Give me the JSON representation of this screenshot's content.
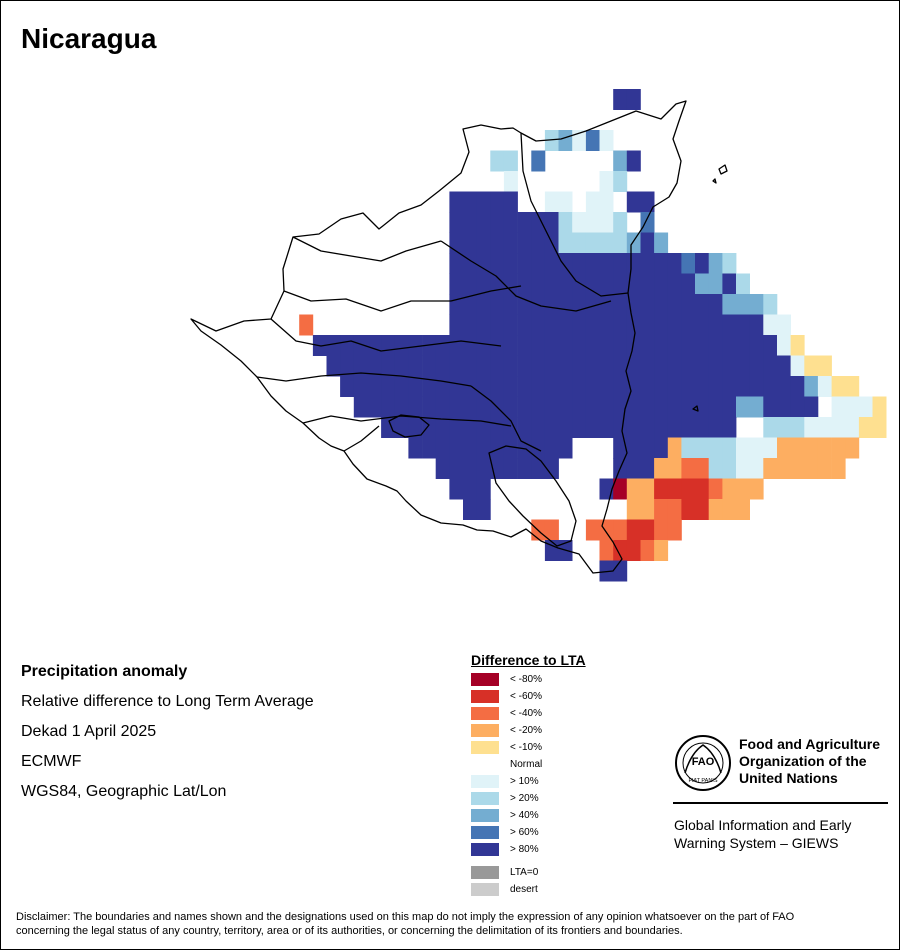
{
  "title": "Nicaragua",
  "info": {
    "heading": "Precipitation anomaly",
    "subtitle": "Relative difference to Long Term Average",
    "period": "Dekad 1 April 2025",
    "source": "ECMWF",
    "projection": "WGS84, Geographic Lat/Lon"
  },
  "legend": {
    "title": "Difference to LTA",
    "items": [
      {
        "label": "< -80%",
        "color": "#a50026"
      },
      {
        "label": "< -60%",
        "color": "#d73027"
      },
      {
        "label": "< -40%",
        "color": "#f46d43"
      },
      {
        "label": "< -20%",
        "color": "#fdae61"
      },
      {
        "label": "< -10%",
        "color": "#fee090"
      },
      {
        "label": "Normal",
        "color": "#ffffff"
      },
      {
        "label": "> 10%",
        "color": "#e0f3f8"
      },
      {
        "label": "> 20%",
        "color": "#abd9e9"
      },
      {
        "label": "> 40%",
        "color": "#74add1"
      },
      {
        "label": "> 60%",
        "color": "#4575b4"
      },
      {
        "label": "> 80%",
        "color": "#313695"
      }
    ],
    "extra": [
      {
        "label": "LTA=0",
        "color": "#999999"
      },
      {
        "label": "desert",
        "color": "#cccccc"
      }
    ]
  },
  "org": {
    "logo_text": "FAO",
    "logo_motto": "FIAT PANIS",
    "name_line1": "Food and Agriculture",
    "name_line2": "Organization of the",
    "name_line3": "United Nations",
    "system_line1": "Global Information and Early",
    "system_line2": "Warning System – GIEWS"
  },
  "disclaimer_line1": "Disclaimer: The boundaries and names shown and the designations used on this map do not imply the expression of any opinion whatsoever on the part of FAO",
  "disclaimer_line2": "concerning the legal status of any country, territory, area or of its authorities, or concerning the delimitation of its frontiers and boundaries.",
  "anomaly_grid": {
    "rows": [
      "...............................AA",
      "..............................gBB",
      "..........................hiwjwBBB",
      "......................hh.jgggggiAB",
      "......................fwfffffgwhg",
      "...................AAAAAffwwgwwgAA",
      "...................AAAAAAAAhwwwhfj",
      "...................AAAAAAAAhhhhhiAi",
      "...................AAAAAAAAAAAAAAAAAjAih",
      "...................AAAAAAAAAAAAAAAAAAiiAh",
      "...................AAAAAAAAAAAAAAAAAAAAiiih",
      "........c..........AAAAAAAAAAAAAAAAAAAAAAAww",
      ".........AAAAAAAAAAAAAAAAAAAAAAAAAAAAAAAAAAwe",
      "..........AAAAAAAAAAAAAAAAAAAAAAAAAAAAAAAAAAwee",
      "...........AAAAAAAAAAAAAAAAAAAAAAAAAAAAAAAAAAiwee",
      "............AAAAAAAAAAAAAAAAAAAAAAAAAAAAiiAAAAgwwwe",
      "..............AAAAAAAAAAAAAAAAAAAAAAAAAAgghhhwwwwee",
      "................AAAAAAAAAAAA...AAAAdhhhhwwwdddddd",
      "..................AAAAAAAAA....AAAddcchhwwdddddd",
      "...................AAA........Aaddbbbbcddd",
      "....................AA..........ddccbbddd",
      ".........................cc..cccbbcc",
      "..........................AA..cbbcd",
      "..............................AA"
    ]
  }
}
